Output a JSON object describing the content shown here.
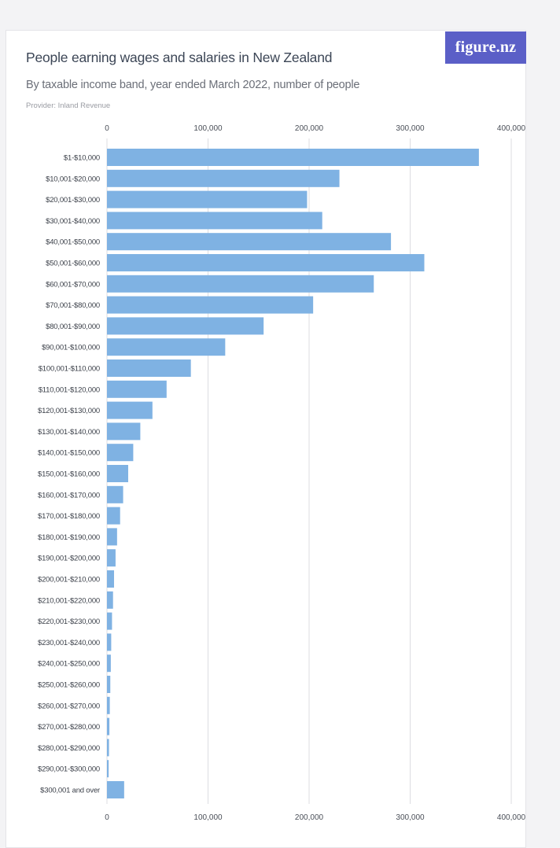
{
  "header": {
    "title": "People earning wages and salaries in New Zealand",
    "subtitle": "By taxable income band, year ended March 2022, number of people",
    "provider": "Provider: Inland Revenue",
    "logo_text": "figure.nz"
  },
  "colors": {
    "bar": "#7fb2e3",
    "logo_bg": "#5b5fc7",
    "grid": "#dcdde2"
  },
  "chart_data": {
    "type": "bar",
    "orientation": "horizontal",
    "title": "People earning wages and salaries in New Zealand",
    "subtitle": "By taxable income band, year ended March 2022, number of people",
    "xlim": [
      0,
      400000
    ],
    "x_ticks": [
      0,
      100000,
      200000,
      300000,
      400000
    ],
    "x_tick_labels": [
      "0",
      "100,000",
      "200,000",
      "300,000",
      "400,000"
    ],
    "x_axis_position": "top and bottom",
    "grid": true,
    "categories": [
      "$1-$10,000",
      "$10,001-$20,000",
      "$20,001-$30,000",
      "$30,001-$40,000",
      "$40,001-$50,000",
      "$50,001-$60,000",
      "$60,001-$70,000",
      "$70,001-$80,000",
      "$80,001-$90,000",
      "$90,001-$100,000",
      "$100,001-$110,000",
      "$110,001-$120,000",
      "$120,001-$130,000",
      "$130,001-$140,000",
      "$140,001-$150,000",
      "$150,001-$160,000",
      "$160,001-$170,000",
      "$170,001-$180,000",
      "$180,001-$190,000",
      "$190,001-$200,000",
      "$200,001-$210,000",
      "$210,001-$220,000",
      "$220,001-$230,000",
      "$230,001-$240,000",
      "$240,001-$250,000",
      "$250,001-$260,000",
      "$260,001-$270,000",
      "$270,001-$280,000",
      "$280,001-$290,000",
      "$290,001-$300,000",
      "$300,001 and over"
    ],
    "values": [
      368000,
      230000,
      198000,
      213000,
      281000,
      314000,
      264000,
      204000,
      155000,
      117000,
      83000,
      59000,
      45000,
      33000,
      26000,
      21000,
      16000,
      13000,
      10000,
      8500,
      7000,
      6000,
      5000,
      4200,
      3800,
      3300,
      2800,
      2400,
      2000,
      1700,
      17000
    ]
  }
}
